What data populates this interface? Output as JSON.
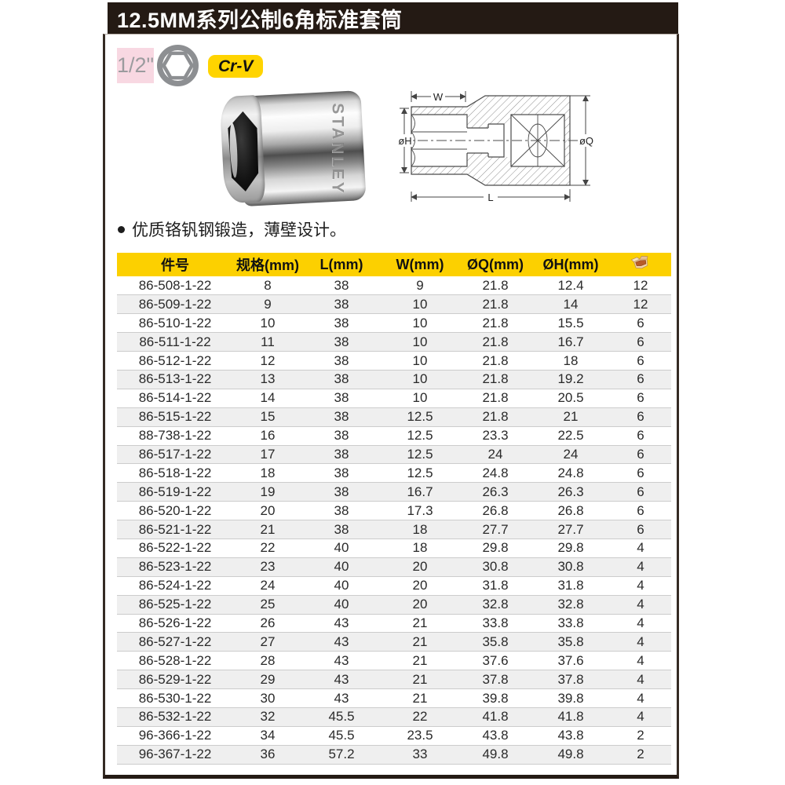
{
  "page": {
    "title": "12.5MM系列公制6角标准套筒"
  },
  "badges": {
    "drive_size": "1/2\"",
    "hex_icon": "hexagon-socket-profile",
    "material": "Cr-V",
    "accent_yellow": "#fcd000",
    "badge_pink": "#f8d8e2"
  },
  "photo": {
    "brand": "STANLEY"
  },
  "diagram": {
    "labels": {
      "w": "W",
      "oh": "øH",
      "oq": "øQ",
      "l": "L"
    }
  },
  "features": {
    "line1": "优质铬钒钢锻造，薄壁设计。"
  },
  "table": {
    "headers": [
      "件号",
      "规格(mm)",
      "L(mm)",
      "W(mm)",
      "ØQ(mm)",
      "ØH(mm)"
    ],
    "pack_column_icon": "box-icon",
    "rows": [
      [
        "86-508-1-22",
        "8",
        "38",
        "9",
        "21.8",
        "12.4",
        "12"
      ],
      [
        "86-509-1-22",
        "9",
        "38",
        "10",
        "21.8",
        "14",
        "12"
      ],
      [
        "86-510-1-22",
        "10",
        "38",
        "10",
        "21.8",
        "15.5",
        "6"
      ],
      [
        "86-511-1-22",
        "11",
        "38",
        "10",
        "21.8",
        "16.7",
        "6"
      ],
      [
        "86-512-1-22",
        "12",
        "38",
        "10",
        "21.8",
        "18",
        "6"
      ],
      [
        "86-513-1-22",
        "13",
        "38",
        "10",
        "21.8",
        "19.2",
        "6"
      ],
      [
        "86-514-1-22",
        "14",
        "38",
        "10",
        "21.8",
        "20.5",
        "6"
      ],
      [
        "86-515-1-22",
        "15",
        "38",
        "12.5",
        "21.8",
        "21",
        "6"
      ],
      [
        "88-738-1-22",
        "16",
        "38",
        "12.5",
        "23.3",
        "22.5",
        "6"
      ],
      [
        "86-517-1-22",
        "17",
        "38",
        "12.5",
        "24",
        "24",
        "6"
      ],
      [
        "86-518-1-22",
        "18",
        "38",
        "12.5",
        "24.8",
        "24.8",
        "6"
      ],
      [
        "86-519-1-22",
        "19",
        "38",
        "16.7",
        "26.3",
        "26.3",
        "6"
      ],
      [
        "86-520-1-22",
        "20",
        "38",
        "17.3",
        "26.8",
        "26.8",
        "6"
      ],
      [
        "86-521-1-22",
        "21",
        "38",
        "18",
        "27.7",
        "27.7",
        "6"
      ],
      [
        "86-522-1-22",
        "22",
        "40",
        "18",
        "29.8",
        "29.8",
        "4"
      ],
      [
        "86-523-1-22",
        "23",
        "40",
        "20",
        "30.8",
        "30.8",
        "4"
      ],
      [
        "86-524-1-22",
        "24",
        "40",
        "20",
        "31.8",
        "31.8",
        "4"
      ],
      [
        "86-525-1-22",
        "25",
        "40",
        "20",
        "32.8",
        "32.8",
        "4"
      ],
      [
        "86-526-1-22",
        "26",
        "43",
        "21",
        "33.8",
        "33.8",
        "4"
      ],
      [
        "86-527-1-22",
        "27",
        "43",
        "21",
        "35.8",
        "35.8",
        "4"
      ],
      [
        "86-528-1-22",
        "28",
        "43",
        "21",
        "37.6",
        "37.6",
        "4"
      ],
      [
        "86-529-1-22",
        "29",
        "43",
        "21",
        "37.8",
        "37.8",
        "4"
      ],
      [
        "86-530-1-22",
        "30",
        "43",
        "21",
        "39.8",
        "39.8",
        "4"
      ],
      [
        "86-532-1-22",
        "32",
        "45.5",
        "22",
        "41.8",
        "41.8",
        "4"
      ],
      [
        "96-366-1-22",
        "34",
        "45.5",
        "23.5",
        "43.8",
        "43.8",
        "2"
      ],
      [
        "96-367-1-22",
        "36",
        "57.2",
        "33",
        "49.8",
        "49.8",
        "2"
      ]
    ]
  }
}
